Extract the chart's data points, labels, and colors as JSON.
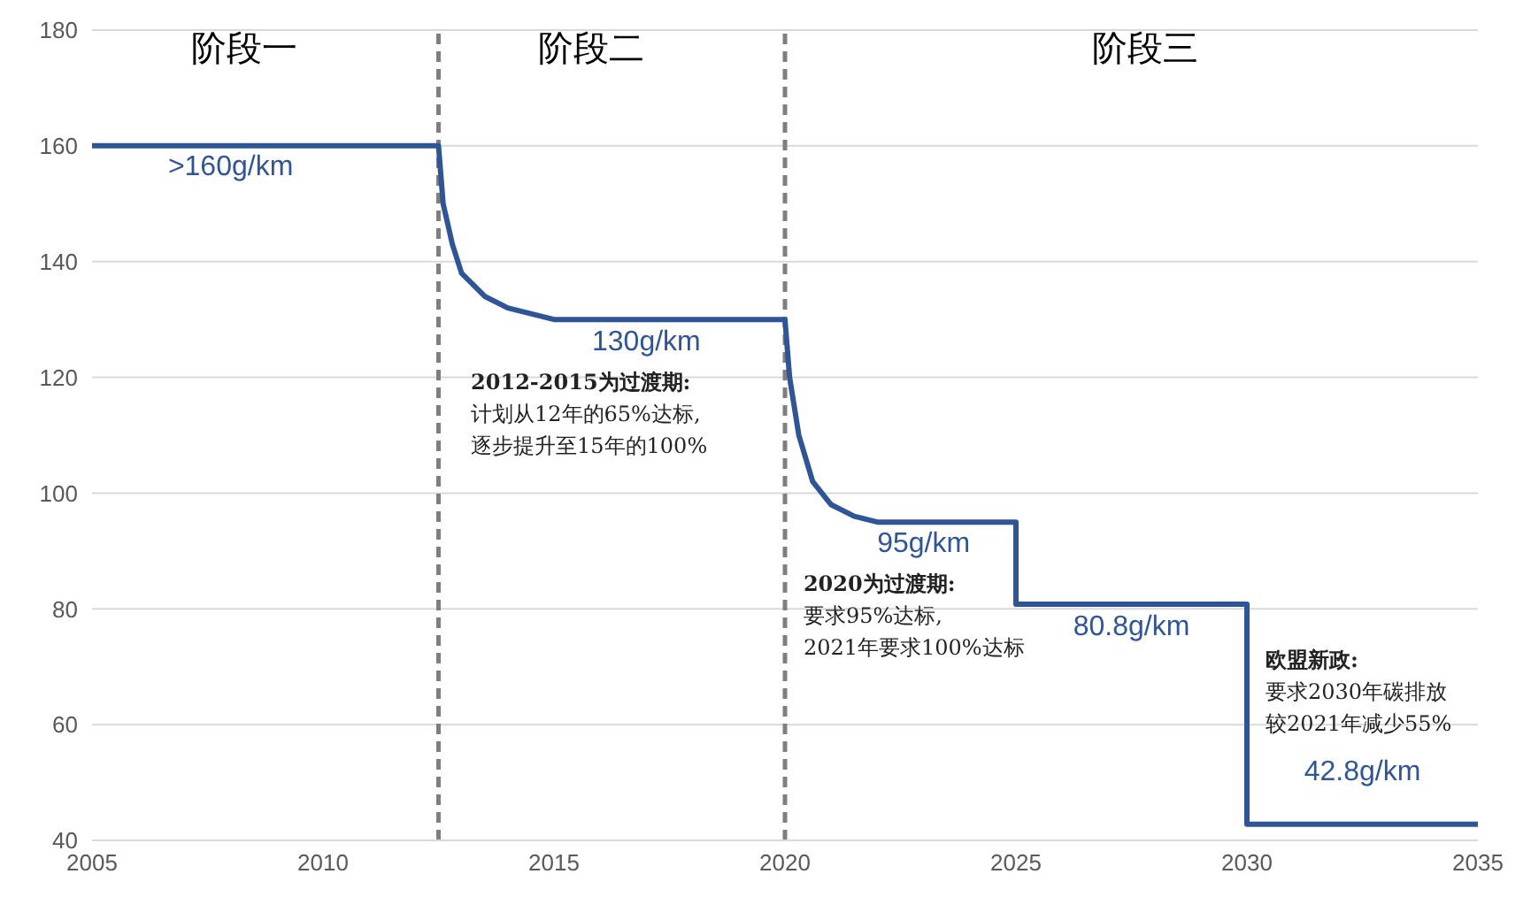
{
  "chart_data": {
    "type": "line",
    "x": [
      2005,
      2012.5,
      2012.6,
      2012.8,
      2013,
      2013.5,
      2014,
      2015,
      2020,
      2020.1,
      2020.3,
      2020.6,
      2021,
      2021.5,
      2022,
      2025,
      2025,
      2030,
      2030,
      2035
    ],
    "series": [
      {
        "color": "#2f5597",
        "values": [
          160,
          160,
          150,
          143,
          138,
          134,
          132,
          130,
          130,
          120,
          110,
          102,
          98,
          96,
          95,
          95,
          80.8,
          80.8,
          42.8,
          42.8
        ]
      }
    ],
    "xlim": [
      2005,
      2035
    ],
    "xticks": [
      2005,
      2010,
      2015,
      2020,
      2025,
      2030,
      2035
    ],
    "ylim": [
      40,
      180
    ],
    "yticks": [
      40,
      60,
      80,
      100,
      120,
      140,
      160,
      180
    ],
    "grid": "y",
    "marker": "none",
    "line_style": "solid",
    "ref_lines": [
      {
        "axis": "x",
        "value": 2012.5,
        "color": "#7f7f7f",
        "line_style": "dashed"
      },
      {
        "axis": "x",
        "value": 2020,
        "color": "#7f7f7f",
        "line_style": "dashed"
      }
    ],
    "annotations": [
      {
        "text": ">160g/km",
        "x": 2008,
        "y": 160
      },
      {
        "text": "130g/km",
        "x": 2017,
        "y": 130
      },
      {
        "text": "95g/km",
        "x": 2023,
        "y": 95
      },
      {
        "text": "80.8g/km",
        "x": 2027.5,
        "y": 80.8
      },
      {
        "text": "42.8g/km",
        "x": 2032.5,
        "y": 42.8
      },
      "阶段一",
      "阶段二",
      "阶段三",
      "2012-2015为过渡期:",
      "计划从12年的65%达标,",
      "逐步提升至15年的100%",
      "2020为过渡期:",
      "要求95%达标,",
      "2021年要求100%达标",
      "欧盟新政:",
      "要求2030年碳排放",
      "较2021年减少55%"
    ]
  }
}
